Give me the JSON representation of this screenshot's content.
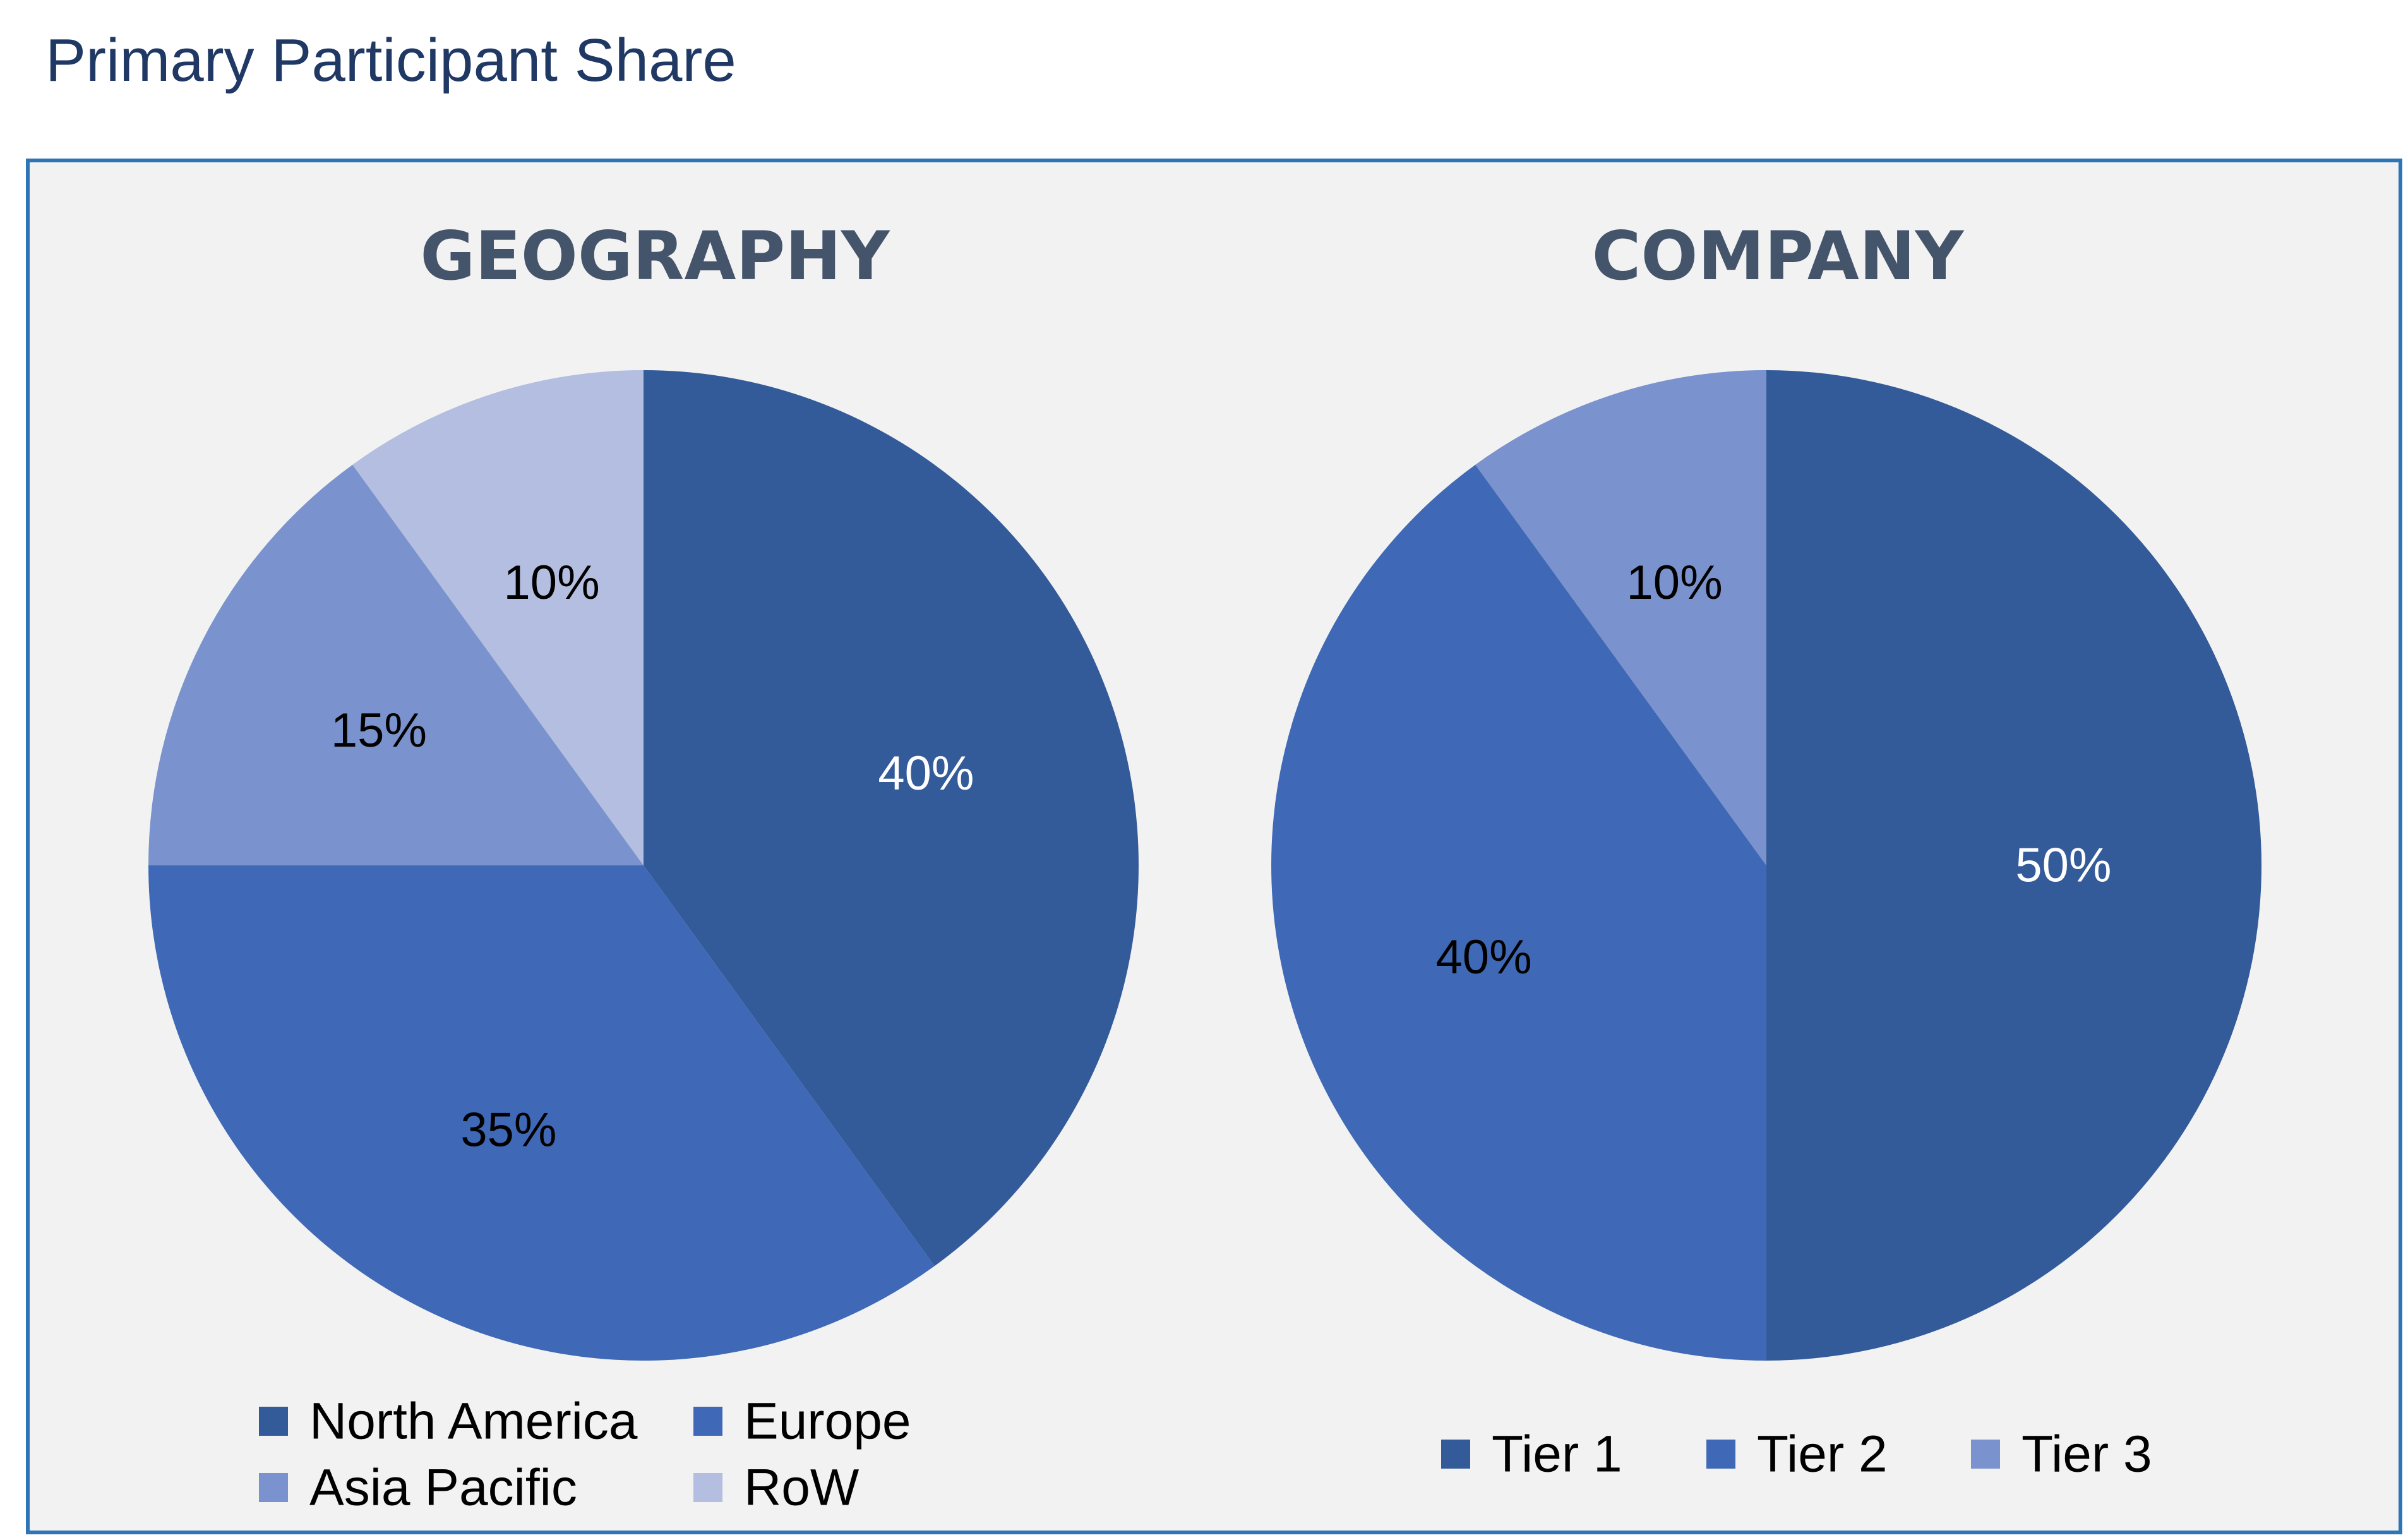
{
  "page": {
    "title": "Primary Participant Share"
  },
  "chart_data": [
    {
      "type": "pie",
      "title": "GEOGRAPHY",
      "categories": [
        "North America",
        "Europe",
        "Asia Pacific",
        "RoW"
      ],
      "values": [
        40,
        35,
        15,
        10
      ],
      "labels": [
        "40%",
        "35%",
        "15%",
        "10%"
      ],
      "colors": [
        "#335a99",
        "#3f69b6",
        "#7a92cd",
        "#b3bee0"
      ],
      "label_colors": [
        "#ffffff",
        "#000000",
        "#000000",
        "#000000"
      ],
      "start_angle": "12 o'clock",
      "direction": "clockwise",
      "legend": "bottom"
    },
    {
      "type": "pie",
      "title": "COMPANY",
      "categories": [
        "Tier 1",
        "Tier 2",
        "Tier 3"
      ],
      "values": [
        50,
        40,
        10
      ],
      "labels": [
        "50%",
        "40%",
        "10%"
      ],
      "colors": [
        "#335a99",
        "#3f69b6",
        "#7a92cd"
      ],
      "label_colors": [
        "#ffffff",
        "#000000",
        "#000000"
      ],
      "start_angle": "12 o'clock",
      "direction": "clockwise",
      "legend": "bottom"
    }
  ]
}
